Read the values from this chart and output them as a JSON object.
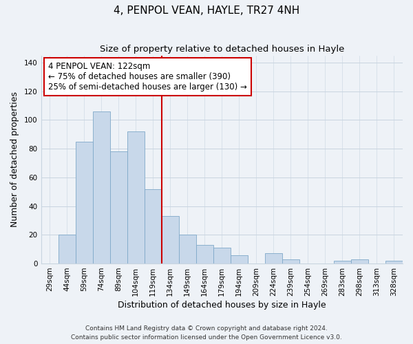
{
  "title": "4, PENPOL VEAN, HAYLE, TR27 4NH",
  "subtitle": "Size of property relative to detached houses in Hayle",
  "xlabel": "Distribution of detached houses by size in Hayle",
  "ylabel": "Number of detached properties",
  "bar_labels": [
    "29sqm",
    "44sqm",
    "59sqm",
    "74sqm",
    "89sqm",
    "104sqm",
    "119sqm",
    "134sqm",
    "149sqm",
    "164sqm",
    "179sqm",
    "194sqm",
    "209sqm",
    "224sqm",
    "239sqm",
    "254sqm",
    "269sqm",
    "283sqm",
    "298sqm",
    "313sqm",
    "328sqm"
  ],
  "bar_values": [
    0,
    20,
    85,
    106,
    78,
    92,
    52,
    33,
    20,
    13,
    11,
    6,
    0,
    7,
    3,
    0,
    0,
    2,
    3,
    0,
    2
  ],
  "bar_color": "#c8d8ea",
  "bar_edge_color": "#7ea8c8",
  "vline_x_index": 7,
  "vline_color": "#cc0000",
  "annotation_text": "4 PENPOL VEAN: 122sqm\n← 75% of detached houses are smaller (390)\n25% of semi-detached houses are larger (130) →",
  "annotation_box_color": "#ffffff",
  "annotation_box_edge": "#cc0000",
  "ylim": [
    0,
    145
  ],
  "yticks": [
    0,
    20,
    40,
    60,
    80,
    100,
    120,
    140
  ],
  "footer1": "Contains HM Land Registry data © Crown copyright and database right 2024.",
  "footer2": "Contains public sector information licensed under the Open Government Licence v3.0.",
  "bg_color": "#eef2f7",
  "plot_bg_color": "#eef2f7",
  "grid_color": "#c8d4e0",
  "title_fontsize": 11,
  "subtitle_fontsize": 9.5,
  "axis_label_fontsize": 9,
  "tick_fontsize": 7.5,
  "annotation_fontsize": 8.5,
  "footer_fontsize": 6.5
}
